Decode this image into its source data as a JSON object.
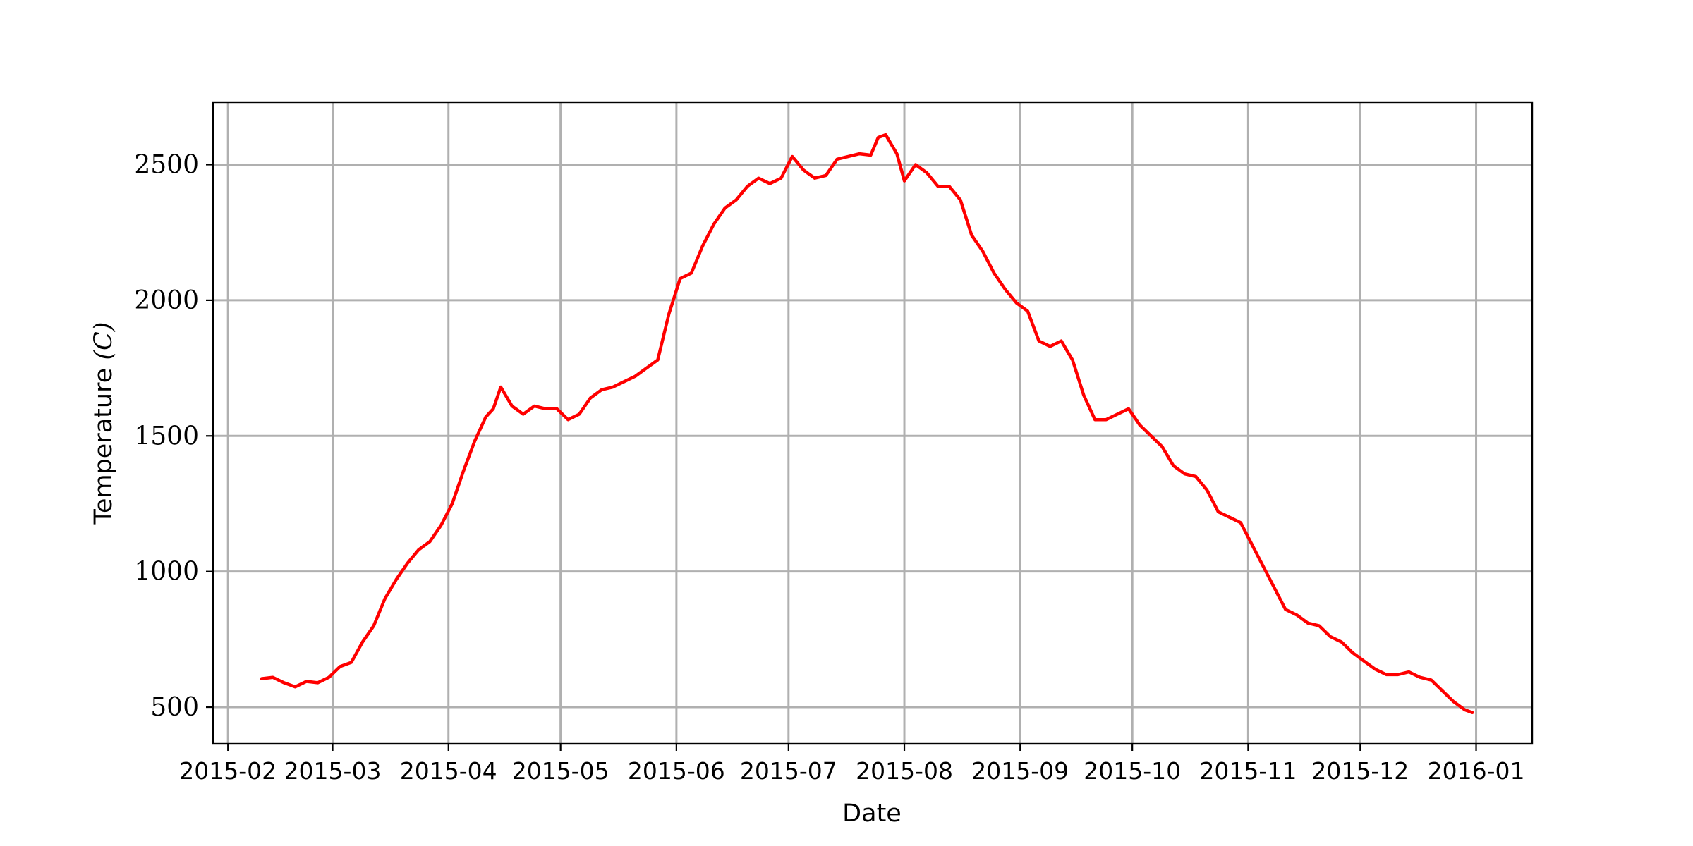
{
  "chart_data": {
    "type": "line",
    "title": "",
    "xlabel": "Date",
    "ylabel": "Temperature (C)",
    "ylabel_text": "Temperature ",
    "ylabel_unit": "(C)",
    "grid": true,
    "legend": "none",
    "xlim": [
      "2015-01-28",
      "2016-01-16"
    ],
    "ylim": [
      365,
      2730
    ],
    "x_ticks": [
      "2015-02-01",
      "2015-03-01",
      "2015-04-01",
      "2015-05-01",
      "2015-06-01",
      "2015-07-01",
      "2015-08-01",
      "2015-09-01",
      "2015-10-01",
      "2015-11-01",
      "2015-12-01",
      "2016-01-01"
    ],
    "x_tick_labels": [
      "2015-02",
      "2015-03",
      "2015-04",
      "2015-05",
      "2015-06",
      "2015-07",
      "2015-08",
      "2015-09",
      "2015-10",
      "2015-11",
      "2015-12",
      "2016-01"
    ],
    "y_ticks": [
      500,
      1000,
      1500,
      2000,
      2500
    ],
    "y_tick_labels": [
      "500",
      "1000",
      "1500",
      "2000",
      "2500"
    ],
    "series": [
      {
        "color": "#ff0000",
        "x": [
          "2015-02-10",
          "2015-02-13",
          "2015-02-16",
          "2015-02-19",
          "2015-02-22",
          "2015-02-25",
          "2015-02-28",
          "2015-03-03",
          "2015-03-06",
          "2015-03-09",
          "2015-03-12",
          "2015-03-15",
          "2015-03-18",
          "2015-03-21",
          "2015-03-24",
          "2015-03-27",
          "2015-03-30",
          "2015-04-02",
          "2015-04-05",
          "2015-04-08",
          "2015-04-11",
          "2015-04-13",
          "2015-04-15",
          "2015-04-18",
          "2015-04-21",
          "2015-04-24",
          "2015-04-27",
          "2015-04-30",
          "2015-05-03",
          "2015-05-06",
          "2015-05-09",
          "2015-05-12",
          "2015-05-15",
          "2015-05-18",
          "2015-05-21",
          "2015-05-24",
          "2015-05-27",
          "2015-05-30",
          "2015-06-02",
          "2015-06-05",
          "2015-06-08",
          "2015-06-11",
          "2015-06-14",
          "2015-06-17",
          "2015-06-20",
          "2015-06-23",
          "2015-06-26",
          "2015-06-29",
          "2015-07-02",
          "2015-07-05",
          "2015-07-08",
          "2015-07-11",
          "2015-07-14",
          "2015-07-17",
          "2015-07-20",
          "2015-07-23",
          "2015-07-25",
          "2015-07-27",
          "2015-07-30",
          "2015-08-01",
          "2015-08-04",
          "2015-08-07",
          "2015-08-10",
          "2015-08-13",
          "2015-08-16",
          "2015-08-19",
          "2015-08-22",
          "2015-08-25",
          "2015-08-28",
          "2015-08-31",
          "2015-09-03",
          "2015-09-06",
          "2015-09-09",
          "2015-09-12",
          "2015-09-15",
          "2015-09-18",
          "2015-09-21",
          "2015-09-24",
          "2015-09-27",
          "2015-09-30",
          "2015-10-03",
          "2015-10-06",
          "2015-10-09",
          "2015-10-12",
          "2015-10-15",
          "2015-10-18",
          "2015-10-21",
          "2015-10-24",
          "2015-10-27",
          "2015-10-30",
          "2015-11-02",
          "2015-11-05",
          "2015-11-08",
          "2015-11-11",
          "2015-11-14",
          "2015-11-17",
          "2015-11-20",
          "2015-11-23",
          "2015-11-26",
          "2015-11-29",
          "2015-12-02",
          "2015-12-05",
          "2015-12-08",
          "2015-12-11",
          "2015-12-14",
          "2015-12-17",
          "2015-12-20",
          "2015-12-23",
          "2015-12-26",
          "2015-12-29",
          "2015-12-31"
        ],
        "y": [
          605,
          610,
          590,
          575,
          595,
          590,
          610,
          650,
          665,
          740,
          800,
          900,
          970,
          1030,
          1080,
          1110,
          1170,
          1250,
          1370,
          1480,
          1570,
          1600,
          1680,
          1610,
          1580,
          1610,
          1600,
          1600,
          1560,
          1580,
          1640,
          1670,
          1680,
          1700,
          1720,
          1750,
          1780,
          1950,
          2080,
          2100,
          2200,
          2280,
          2340,
          2370,
          2420,
          2450,
          2430,
          2450,
          2530,
          2480,
          2450,
          2460,
          2520,
          2530,
          2540,
          2535,
          2600,
          2610,
          2540,
          2440,
          2500,
          2470,
          2420,
          2420,
          2370,
          2240,
          2180,
          2100,
          2040,
          1990,
          1960,
          1850,
          1830,
          1850,
          1780,
          1650,
          1560,
          1560,
          1580,
          1600,
          1540,
          1500,
          1460,
          1390,
          1360,
          1350,
          1300,
          1220,
          1200,
          1180,
          1100,
          1020,
          940,
          860,
          840,
          810,
          800,
          760,
          740,
          700,
          670,
          640,
          620,
          620,
          630,
          610,
          600,
          560,
          520,
          490,
          480
        ]
      }
    ]
  }
}
